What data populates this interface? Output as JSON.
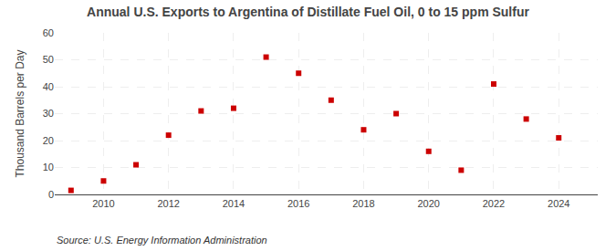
{
  "chart_data": {
    "type": "scatter",
    "title": "Annual U.S. Exports to Argentina of Distillate Fuel Oil, 0 to 15 ppm Sulfur",
    "ylabel": "Thousand Barrels per Day",
    "annotations": [
      "Source: U.S. Energy Information Administration"
    ],
    "x": [
      2009,
      2010,
      2011,
      2012,
      2013,
      2014,
      2015,
      2016,
      2017,
      2018,
      2019,
      2020,
      2021,
      2022,
      2023,
      2024
    ],
    "values": [
      1.5,
      5.0,
      11.0,
      22.0,
      31.0,
      32.0,
      51.0,
      45.0,
      35.0,
      24.0,
      30.0,
      16.0,
      9.0,
      41.0,
      28.0,
      21.0
    ],
    "color": "#cc0000",
    "marker": "square",
    "xlim": [
      2008.5,
      2025.2
    ],
    "xticks": [
      2010,
      2012,
      2014,
      2016,
      2018,
      2020,
      2022,
      2024
    ],
    "ylim": [
      0,
      60
    ],
    "yticks": [
      0,
      10,
      20,
      30,
      40,
      50,
      60
    ],
    "grid": true
  }
}
